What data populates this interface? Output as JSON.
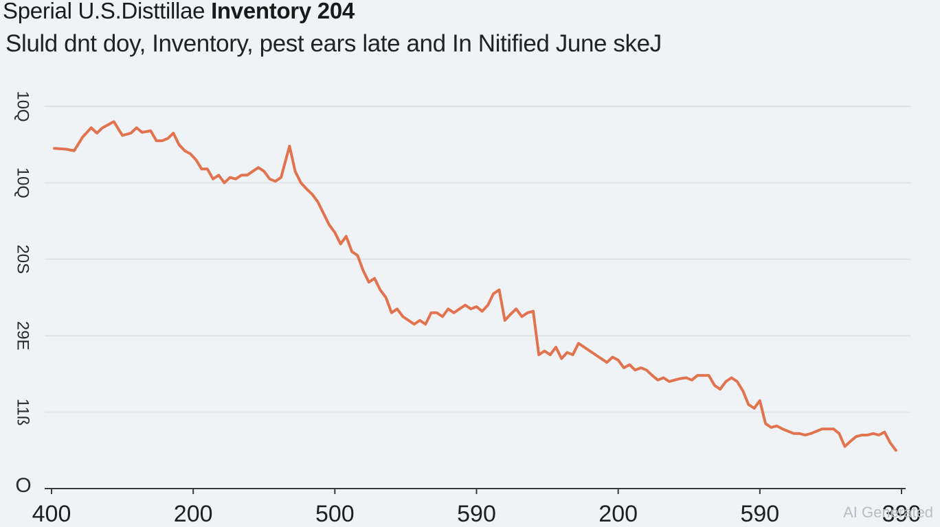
{
  "colors": {
    "background": "#eff3f6",
    "line": "#e2734f",
    "text": "#1a1a1a",
    "grid": "#e0e4e8",
    "axis": "#3a3a3a"
  },
  "header": {
    "title_part1": "Sperial U.S.",
    "title_part2": "Disttillae ",
    "title_part3": "Inventory 204",
    "subtitle": "Sluld dnt doy, Inventory, pest ears late and In Nitified June skeJ"
  },
  "watermark": "AI Generated",
  "chart_data": {
    "type": "line",
    "title": "Sperial U.S.Disttillae Inventory 204",
    "subtitle": "Sluld dnt doy, Inventory, pest ears late and In Nitified June skeJ",
    "xlabel": "",
    "ylabel": "",
    "grid": true,
    "legend": "none",
    "xlim": [
      0,
      300
    ],
    "ylim": [
      0,
      5
    ],
    "x_ticks": [
      {
        "value": 0,
        "label": "400"
      },
      {
        "value": 50,
        "label": "200"
      },
      {
        "value": 100,
        "label": "500"
      },
      {
        "value": 150,
        "label": "590"
      },
      {
        "value": 200,
        "label": "200"
      },
      {
        "value": 250,
        "label": "590"
      },
      {
        "value": 300,
        "label": "390"
      }
    ],
    "y_ticks": [
      {
        "value": 0,
        "label": "O"
      },
      {
        "value": 1,
        "label": "11ß"
      },
      {
        "value": 2,
        "label": "29E"
      },
      {
        "value": 3,
        "label": "20S"
      },
      {
        "value": 4,
        "label": "10Q"
      },
      {
        "value": 5,
        "label": "10Q"
      }
    ],
    "series": [
      {
        "name": "Inventory",
        "x": [
          1,
          5,
          8,
          11,
          14,
          16,
          18,
          20,
          22,
          25,
          28,
          30,
          32,
          35,
          37,
          39,
          41,
          43,
          45,
          47,
          49,
          51,
          53,
          55,
          57,
          59,
          61,
          63,
          65,
          67,
          69,
          71,
          73,
          75,
          77,
          79,
          81,
          84,
          86,
          88,
          90,
          92,
          94,
          96,
          98,
          100,
          102,
          104,
          106,
          108,
          110,
          112,
          114,
          116,
          118,
          120,
          122,
          124,
          126,
          128,
          130,
          132,
          134,
          136,
          138,
          140,
          142,
          144,
          146,
          148,
          150,
          152,
          154,
          156,
          158,
          160,
          162,
          164,
          166,
          168,
          170,
          172,
          174,
          176,
          178,
          180,
          182,
          184,
          186,
          188,
          190,
          192,
          194,
          196,
          198,
          200,
          202,
          204,
          206,
          208,
          210,
          212,
          214,
          216,
          218,
          220,
          222,
          224,
          226,
          228,
          230,
          232,
          234,
          236,
          238,
          240,
          242,
          244,
          246,
          248,
          250,
          252,
          254,
          256,
          258,
          260,
          262,
          264,
          266,
          268,
          270,
          272,
          274,
          276,
          278,
          280,
          282,
          284,
          286,
          288,
          290,
          292,
          294,
          296,
          298
        ],
        "values": [
          4.45,
          4.44,
          4.42,
          4.6,
          4.72,
          4.65,
          4.72,
          4.76,
          4.8,
          4.62,
          4.65,
          4.72,
          4.66,
          4.68,
          4.55,
          4.55,
          4.58,
          4.65,
          4.5,
          4.42,
          4.38,
          4.3,
          4.18,
          4.18,
          4.05,
          4.1,
          4.0,
          4.07,
          4.05,
          4.1,
          4.1,
          4.15,
          4.2,
          4.15,
          4.05,
          4.02,
          4.07,
          4.48,
          4.15,
          4.0,
          3.92,
          3.85,
          3.75,
          3.6,
          3.45,
          3.35,
          3.2,
          3.3,
          3.1,
          3.05,
          2.85,
          2.7,
          2.75,
          2.6,
          2.5,
          2.3,
          2.35,
          2.25,
          2.2,
          2.15,
          2.2,
          2.15,
          2.3,
          2.3,
          2.25,
          2.35,
          2.3,
          2.35,
          2.4,
          2.35,
          2.38,
          2.32,
          2.4,
          2.55,
          2.6,
          2.2,
          2.28,
          2.35,
          2.25,
          2.3,
          2.32,
          1.75,
          1.8,
          1.75,
          1.85,
          1.7,
          1.78,
          1.75,
          1.9,
          1.85,
          1.8,
          1.75,
          1.7,
          1.65,
          1.72,
          1.68,
          1.58,
          1.62,
          1.55,
          1.58,
          1.55,
          1.48,
          1.42,
          1.45,
          1.4,
          1.42,
          1.44,
          1.45,
          1.42,
          1.48,
          1.48,
          1.48,
          1.35,
          1.3,
          1.4,
          1.45,
          1.4,
          1.28,
          1.1,
          1.05,
          1.15,
          0.85,
          0.8,
          0.82,
          0.78,
          0.75,
          0.72,
          0.72,
          0.7,
          0.72,
          0.75,
          0.78,
          0.78,
          0.78,
          0.72,
          0.55,
          0.62,
          0.68,
          0.7,
          0.7,
          0.72,
          0.7,
          0.74,
          0.6,
          0.5
        ]
      }
    ]
  }
}
